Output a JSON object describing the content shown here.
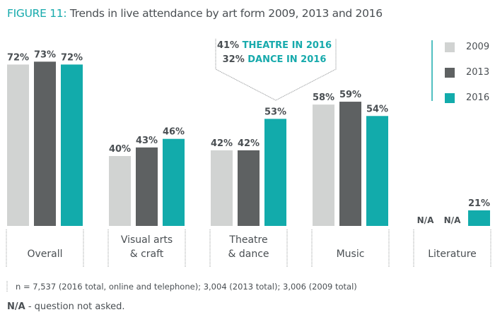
{
  "title": {
    "figure_label": "FIGURE 11:",
    "text": "Trends in live attendance by art form 2009, 2013 and 2016"
  },
  "callout": {
    "line1_value": "41%",
    "line1_text": "THEATRE IN 2016",
    "line2_value": "32%",
    "line2_text": "DANCE IN 2016"
  },
  "chart_data": {
    "type": "bar",
    "title": "Trends in live attendance by art form 2009, 2013 and 2016",
    "xlabel": "",
    "ylabel": "",
    "categories": [
      "Overall",
      "Visual arts & craft",
      "Theatre & dance",
      "Music",
      "Literature"
    ],
    "category_lines": [
      [
        "Overall"
      ],
      [
        "Visual arts",
        "& craft"
      ],
      [
        "Theatre",
        "& dance"
      ],
      [
        "Music"
      ],
      [
        "Literature"
      ]
    ],
    "series": [
      {
        "name": "2009",
        "color": "#d1d3d2",
        "values": [
          72,
          40,
          42,
          58,
          null
        ],
        "labels": [
          "72%",
          "40%",
          "42%",
          "58%",
          "N/A"
        ]
      },
      {
        "name": "2013",
        "color": "#5e6162",
        "values": [
          73,
          43,
          42,
          59,
          null
        ],
        "labels": [
          "73%",
          "43%",
          "42%",
          "59%",
          "N/A"
        ]
      },
      {
        "name": "2016",
        "color": "#12abab",
        "values": [
          72,
          46,
          53,
          54,
          21
        ],
        "labels": [
          "72%",
          "46%",
          "53%",
          "54%",
          "21%"
        ]
      }
    ],
    "legend_position": "top-right",
    "grid": false
  },
  "footnote": "n = 7,537 (2016 total, online and telephone); 3,004 (2013 total); 3,006 (2009 total)",
  "na_note": {
    "label": "N/A",
    "text": " - question not asked."
  }
}
